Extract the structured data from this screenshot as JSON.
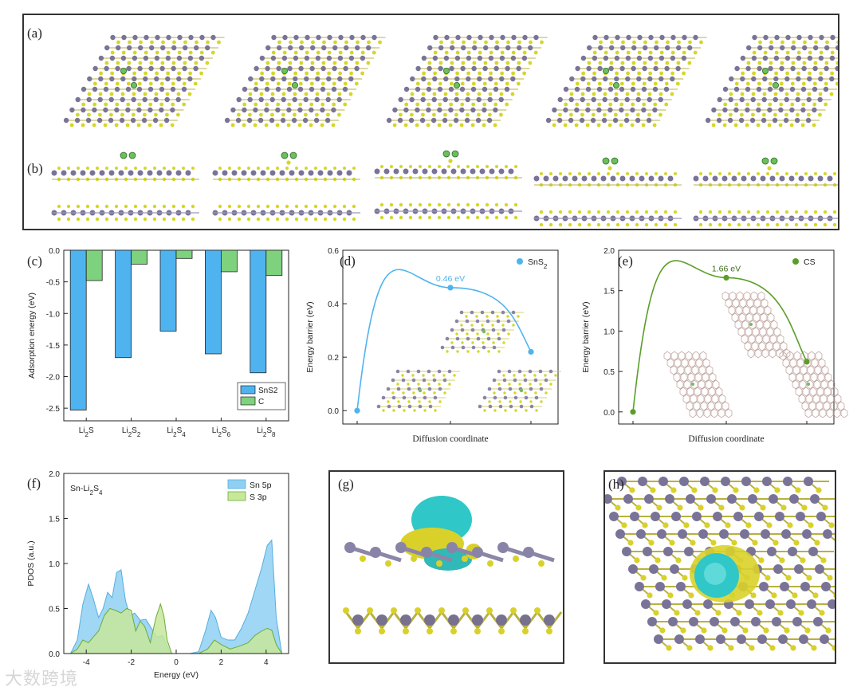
{
  "panel_labels": [
    "(a)",
    "(b)",
    "(c)",
    "(d)",
    "(e)",
    "(f)",
    "(g)",
    "(h)"
  ],
  "watermark": "大数跨境",
  "chart_data": [
    {
      "id": "c",
      "type": "bar",
      "categories": [
        "Li2S",
        "Li2S2",
        "Li2S4",
        "Li2S6",
        "Li2S8"
      ],
      "series": [
        {
          "name": "SnS2",
          "values": [
            -2.53,
            -1.7,
            -1.28,
            -1.64,
            -1.94
          ],
          "color": "#4fb3f0"
        },
        {
          "name": "C",
          "values": [
            -0.48,
            -0.22,
            -0.13,
            -0.34,
            -0.4
          ],
          "color": "#7ed27e"
        }
      ],
      "ylabel": "Adsorption energy (eV)",
      "ylim": [
        -2.7,
        0.0
      ],
      "yticks": [
        0.0,
        -0.5,
        -1.0,
        -1.5,
        -2.0,
        -2.5
      ],
      "ytick_labels": [
        "0.0",
        "-0.5",
        "-1.0",
        "-1.5",
        "-2.0",
        "-2.5"
      ],
      "legend_position": "bottom-right"
    },
    {
      "id": "d",
      "type": "line",
      "x": [
        0,
        1,
        2
      ],
      "values": [
        0.0,
        0.46,
        0.22
      ],
      "series_name": "SnS2",
      "color": "#4fb3f0",
      "annotation": "0.46 eV",
      "xlabel": "Diffusion coordinate",
      "ylabel": "Energy barrier (eV)",
      "ylim": [
        -0.05,
        0.6
      ],
      "yticks": [
        0.0,
        0.2,
        0.4,
        0.6
      ],
      "ytick_labels": [
        "0.0",
        "0.2",
        "0.4",
        "0.6"
      ],
      "legend_position": "top-right"
    },
    {
      "id": "e",
      "type": "line",
      "x": [
        0,
        1,
        2
      ],
      "values": [
        0.0,
        1.66,
        0.62
      ],
      "series_name": "CS",
      "color": "#5a9e2a",
      "annotation": "1.66 eV",
      "xlabel": "Diffusion coordinate",
      "ylabel": "Energy barrier (eV)",
      "ylim": [
        -0.15,
        2.0
      ],
      "yticks": [
        0.0,
        0.5,
        1.0,
        1.5,
        2.0
      ],
      "ytick_labels": [
        "0.0",
        "0.5",
        "1.0",
        "1.5",
        "2.0"
      ],
      "legend_position": "top-right"
    },
    {
      "id": "f",
      "type": "area",
      "title": "Sn-Li2S4",
      "xlabel": "Energy (eV)",
      "ylabel": "PDOS (a.u.)",
      "xlim": [
        -5,
        5
      ],
      "ylim": [
        0,
        2.0
      ],
      "xticks": [
        -4,
        -2,
        0,
        2,
        4
      ],
      "xtick_labels": [
        "-4",
        "-2",
        "0",
        "2",
        "4"
      ],
      "yticks": [
        0.0,
        0.5,
        1.0,
        1.5,
        2.0
      ],
      "ytick_labels": [
        "0.0",
        "0.5",
        "1.0",
        "1.5",
        "2.0"
      ],
      "series": [
        {
          "name": "Sn 5p",
          "color": "#8fd0f2",
          "x": [
            -4.7,
            -4.4,
            -4.15,
            -3.9,
            -3.7,
            -3.45,
            -3.25,
            -3.05,
            -2.85,
            -2.65,
            -2.45,
            -2.25,
            -2.05,
            -1.85,
            -1.6,
            -1.35,
            -1.1,
            -0.85,
            -0.6,
            -0.4,
            -0.2,
            0.2,
            0.6,
            1.0,
            1.3,
            1.55,
            1.75,
            2.0,
            2.3,
            2.6,
            2.9,
            3.2,
            3.5,
            3.8,
            4.05,
            4.25,
            4.45,
            4.7
          ],
          "values": [
            0.0,
            0.15,
            0.55,
            0.77,
            0.62,
            0.4,
            0.5,
            0.68,
            0.62,
            0.9,
            0.93,
            0.58,
            0.42,
            0.45,
            0.37,
            0.38,
            0.28,
            0.18,
            0.2,
            0.08,
            0.0,
            0.0,
            0.0,
            0.02,
            0.25,
            0.48,
            0.4,
            0.18,
            0.15,
            0.15,
            0.28,
            0.45,
            0.7,
            0.95,
            1.2,
            1.26,
            0.4,
            0.0
          ]
        },
        {
          "name": "S  3p",
          "color": "#c7e89a",
          "x": [
            -4.7,
            -4.4,
            -4.15,
            -3.9,
            -3.7,
            -3.45,
            -3.2,
            -2.95,
            -2.7,
            -2.45,
            -2.2,
            -2.0,
            -1.8,
            -1.6,
            -1.4,
            -1.15,
            -0.9,
            -0.7,
            -0.55,
            -0.4,
            -0.2,
            0.2,
            0.6,
            1.0,
            1.4,
            1.7,
            2.0,
            2.4,
            2.8,
            3.2,
            3.5,
            3.8,
            4.05,
            4.25,
            4.45,
            4.7
          ],
          "values": [
            0.0,
            0.05,
            0.15,
            0.12,
            0.18,
            0.25,
            0.42,
            0.5,
            0.48,
            0.45,
            0.5,
            0.48,
            0.25,
            0.36,
            0.3,
            0.12,
            0.4,
            0.55,
            0.42,
            0.15,
            0.0,
            0.0,
            0.0,
            0.0,
            0.05,
            0.15,
            0.1,
            0.05,
            0.08,
            0.12,
            0.2,
            0.25,
            0.28,
            0.26,
            0.1,
            0.0
          ]
        }
      ],
      "legend_position": "top-right"
    }
  ]
}
